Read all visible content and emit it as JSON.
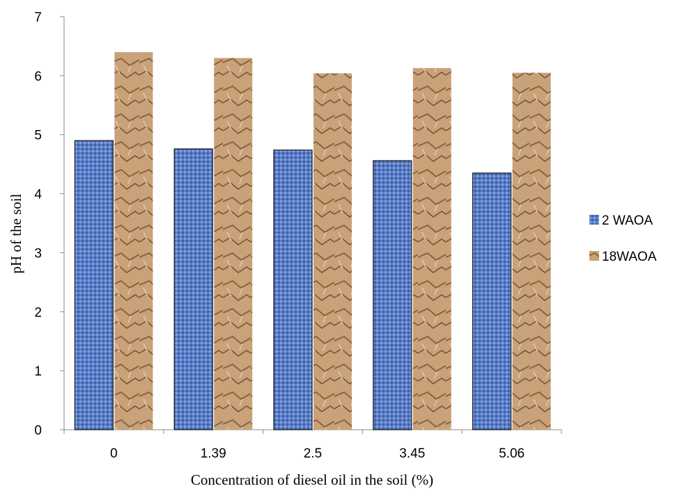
{
  "chart_data": {
    "type": "bar",
    "categories": [
      "0",
      "1.39",
      "2.5",
      "3.45",
      "5.06"
    ],
    "series": [
      {
        "name": "2 WAOA",
        "values": [
          4.9,
          4.76,
          4.74,
          4.56,
          4.35
        ],
        "color": "#5b7ec9"
      },
      {
        "name": "18WAOA",
        "values": [
          6.4,
          6.3,
          6.04,
          6.13,
          6.05
        ],
        "color": "#c9a27a"
      }
    ],
    "title": "",
    "xlabel": "Concentration of diesel oil in the soil (%)",
    "ylabel": "pH of the soil",
    "ylim": [
      0,
      7
    ],
    "yticks": [
      "0",
      "1",
      "2",
      "3",
      "4",
      "5",
      "6",
      "7"
    ],
    "grid": false,
    "legend_position": "right"
  }
}
